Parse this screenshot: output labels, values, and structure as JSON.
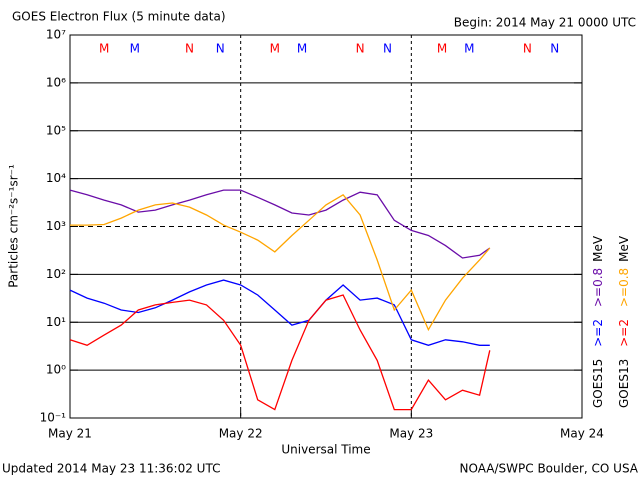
{
  "chart_data": {
    "type": "line",
    "title": "GOES Electron Flux (5 minute data)",
    "subtitle": "Begin: 2014 May 21 0000 UTC",
    "x_label": "Universal Time",
    "y_label": "Particles cm⁻²s⁻¹sr⁻¹",
    "footer_left": "Updated 2014 May 23 11:36:02 UTC",
    "footer_right": "NOAA/SWPC Boulder, CO USA",
    "legend_unit": "MeV",
    "log_y": true,
    "grid": true,
    "threshold": 1000,
    "xlim": [
      0,
      3
    ],
    "xticks": [
      {
        "value": 0,
        "label": "May 21"
      },
      {
        "value": 1,
        "label": "May 22"
      },
      {
        "value": 2,
        "label": "May 23"
      },
      {
        "value": 3,
        "label": "May 24"
      }
    ],
    "ylim": [
      0.1,
      10000000
    ],
    "yticks": [
      {
        "value": 0.1,
        "label": "10⁻¹"
      },
      {
        "value": 1,
        "label": "10⁰"
      },
      {
        "value": 10,
        "label": "10¹"
      },
      {
        "value": 100,
        "label": "10²"
      },
      {
        "value": 1000,
        "label": "10³"
      },
      {
        "value": 10000,
        "label": "10⁴"
      },
      {
        "value": 100000,
        "label": "10⁵"
      },
      {
        "value": 1000000,
        "label": "10⁶"
      },
      {
        "value": 10000000,
        "label": "10⁷"
      }
    ],
    "x": [
      0,
      0.1,
      0.2,
      0.3,
      0.4,
      0.5,
      0.6,
      0.7,
      0.8,
      0.9,
      1.0,
      1.1,
      1.2,
      1.3,
      1.4,
      1.5,
      1.6,
      1.7,
      1.8,
      1.9,
      2.0,
      2.1,
      2.2,
      2.3,
      2.4,
      2.46
    ],
    "series": [
      {
        "name": ">=2",
        "satellite": "GOES15",
        "color": "#0000ff",
        "values": [
          47,
          32,
          25,
          18,
          16,
          20,
          29,
          43,
          60,
          76,
          60,
          37,
          18,
          8.7,
          11,
          29,
          60,
          29,
          32,
          23,
          4.3,
          3.3,
          4.3,
          3.9,
          3.3,
          3.3
        ]
      },
      {
        "name": ">=0.8",
        "satellite": "GOES15",
        "color": "#6a0da8",
        "values": [
          5750,
          4600,
          3560,
          2820,
          2000,
          2200,
          2820,
          3560,
          4600,
          5750,
          5750,
          4070,
          2820,
          1910,
          1740,
          2200,
          3560,
          5200,
          4600,
          1350,
          830,
          650,
          400,
          220,
          250,
          355
        ]
      },
      {
        "name": ">=2",
        "satellite": "GOES13",
        "color": "#ff0000",
        "values": [
          4.3,
          3.3,
          5.4,
          8.7,
          18,
          23,
          26,
          29,
          23,
          11,
          3.3,
          0.24,
          0.15,
          1.6,
          11,
          29,
          37,
          6.9,
          1.6,
          0.15,
          0.15,
          0.62,
          0.24,
          0.38,
          0.3,
          2.6
        ]
      },
      {
        "name": ">=0.8",
        "satellite": "GOES13",
        "color": "#ffa500",
        "values": [
          1070,
          1070,
          1100,
          1500,
          2200,
          2820,
          3100,
          2540,
          1740,
          1070,
          760,
          520,
          295,
          650,
          1350,
          2820,
          4600,
          1740,
          200,
          18,
          47,
          7,
          29,
          83,
          200,
          355
        ]
      }
    ],
    "annotations": [
      {
        "text": "M",
        "x": 0.2,
        "color": "#ff0000"
      },
      {
        "text": "M",
        "x": 0.38,
        "color": "#0000ff"
      },
      {
        "text": "N",
        "x": 0.7,
        "color": "#ff0000"
      },
      {
        "text": "N",
        "x": 0.88,
        "color": "#0000ff"
      },
      {
        "text": "M",
        "x": 1.2,
        "color": "#ff0000"
      },
      {
        "text": "M",
        "x": 1.36,
        "color": "#0000ff"
      },
      {
        "text": "N",
        "x": 1.7,
        "color": "#ff0000"
      },
      {
        "text": "N",
        "x": 1.86,
        "color": "#0000ff"
      },
      {
        "text": "M",
        "x": 2.18,
        "color": "#ff0000"
      },
      {
        "text": "M",
        "x": 2.34,
        "color": "#0000ff"
      },
      {
        "text": "N",
        "x": 2.68,
        "color": "#ff0000"
      },
      {
        "text": "N",
        "x": 2.84,
        "color": "#0000ff"
      }
    ]
  }
}
